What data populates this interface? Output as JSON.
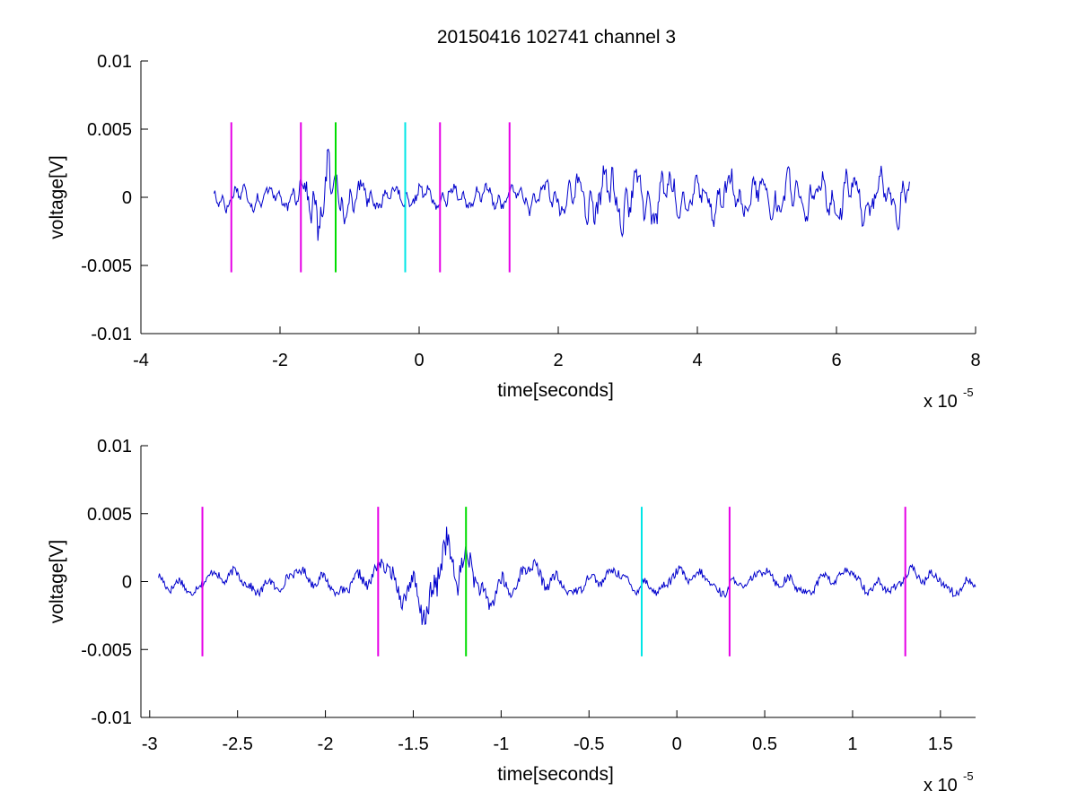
{
  "figure_title": "20150416 102741 channel 3",
  "colors": {
    "signal": "#0000cc",
    "magenta": "#e600e6",
    "green": "#00dd00",
    "cyan": "#00e6e6",
    "axis": "#000000"
  },
  "chart_data": [
    {
      "type": "line",
      "title": "20150416 102741 channel 3",
      "xlabel": "time[seconds]",
      "ylabel": "voltage[V]",
      "x_multiplier": "x 10-5",
      "xlim": [
        -4,
        8
      ],
      "ylim": [
        -0.01,
        0.01
      ],
      "xticks": [
        -4,
        -2,
        0,
        2,
        4,
        6,
        8
      ],
      "xtick_labels": [
        "-4",
        "-2",
        "0",
        "2",
        "4",
        "6",
        "8"
      ],
      "yticks": [
        -0.01,
        -0.005,
        0,
        0.005,
        0.01
      ],
      "ytick_labels": [
        "-0.01",
        "-0.005",
        "0",
        "0.005",
        "0.01"
      ],
      "grid": false,
      "series": [
        {
          "x_range": [
            -2.95,
            7.05
          ],
          "noise_seed": 17,
          "envelope": [
            {
              "x": -2.95,
              "amp": 0.001
            },
            {
              "x": -1.9,
              "amp": 0.001
            },
            {
              "x": -1.6,
              "amp": 0.0018
            },
            {
              "x": -1.35,
              "amp": 0.004
            },
            {
              "x": -1.1,
              "amp": 0.002
            },
            {
              "x": -0.6,
              "amp": 0.001
            },
            {
              "x": 1.5,
              "amp": 0.001
            },
            {
              "x": 2.3,
              "amp": 0.0018
            },
            {
              "x": 2.9,
              "amp": 0.0028
            },
            {
              "x": 3.8,
              "amp": 0.0018
            },
            {
              "x": 7.05,
              "amp": 0.002
            }
          ]
        }
      ],
      "vertical_markers": [
        {
          "x": -2.7,
          "ymin": -0.0055,
          "ymax": 0.0055,
          "color": "magenta"
        },
        {
          "x": -1.7,
          "ymin": -0.0055,
          "ymax": 0.0055,
          "color": "magenta"
        },
        {
          "x": -1.2,
          "ymin": -0.0055,
          "ymax": 0.0055,
          "color": "green"
        },
        {
          "x": -0.2,
          "ymin": -0.0055,
          "ymax": 0.0055,
          "color": "cyan"
        },
        {
          "x": 0.3,
          "ymin": -0.0055,
          "ymax": 0.0055,
          "color": "magenta"
        },
        {
          "x": 1.3,
          "ymin": -0.0055,
          "ymax": 0.0055,
          "color": "magenta"
        }
      ]
    },
    {
      "type": "line",
      "xlabel": "time[seconds]",
      "ylabel": "voltage[V]",
      "x_multiplier": "x 10-5",
      "xlim": [
        -3.05,
        1.7
      ],
      "ylim": [
        -0.01,
        0.01
      ],
      "xticks": [
        -3,
        -2.5,
        -2,
        -1.5,
        -1,
        -0.5,
        0,
        0.5,
        1,
        1.5
      ],
      "xtick_labels": [
        "-3",
        "-2.5",
        "-2",
        "-1.5",
        "-1",
        "-0.5",
        "0",
        "0.5",
        "1",
        "1.5"
      ],
      "yticks": [
        -0.01,
        -0.005,
        0,
        0.005,
        0.01
      ],
      "ytick_labels": [
        "-0.01",
        "-0.005",
        "0",
        "0.005",
        "0.01"
      ],
      "grid": false,
      "series": [
        {
          "x_range": [
            -2.95,
            1.7
          ],
          "noise_seed": 17,
          "envelope": [
            {
              "x": -2.95,
              "amp": 0.001
            },
            {
              "x": -1.9,
              "amp": 0.001
            },
            {
              "x": -1.6,
              "amp": 0.0018
            },
            {
              "x": -1.35,
              "amp": 0.004
            },
            {
              "x": -1.1,
              "amp": 0.002
            },
            {
              "x": -0.6,
              "amp": 0.001
            },
            {
              "x": 1.7,
              "amp": 0.001
            }
          ]
        }
      ],
      "vertical_markers": [
        {
          "x": -2.7,
          "ymin": -0.0055,
          "ymax": 0.0055,
          "color": "magenta"
        },
        {
          "x": -1.7,
          "ymin": -0.0055,
          "ymax": 0.0055,
          "color": "magenta"
        },
        {
          "x": -1.2,
          "ymin": -0.0055,
          "ymax": 0.0055,
          "color": "green"
        },
        {
          "x": -0.2,
          "ymin": -0.0055,
          "ymax": 0.0055,
          "color": "cyan"
        },
        {
          "x": 0.3,
          "ymin": -0.0055,
          "ymax": 0.0055,
          "color": "magenta"
        },
        {
          "x": 1.3,
          "ymin": -0.0055,
          "ymax": 0.0055,
          "color": "magenta"
        }
      ]
    }
  ]
}
